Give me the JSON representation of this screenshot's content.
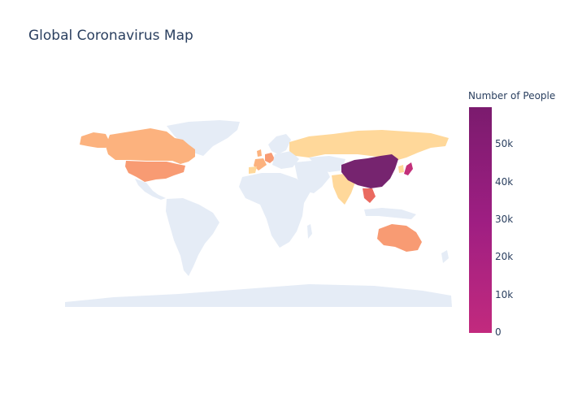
{
  "title": "Global Coronavirus Map",
  "colorbar": {
    "title": "Number of People",
    "ticks": [
      {
        "label": "0",
        "value": 0
      },
      {
        "label": "10k",
        "value": 10000
      },
      {
        "label": "20k",
        "value": 20000
      },
      {
        "label": "30k",
        "value": 30000
      },
      {
        "label": "40k",
        "value": 40000
      },
      {
        "label": "50k",
        "value": 50000
      }
    ],
    "min": 0,
    "max": 60000,
    "colors": [
      "#c22a7e",
      "#9e1e82",
      "#7b1b6e"
    ]
  },
  "colors": {
    "land": "#e5ecf6",
    "low": "#ffd89a",
    "low_mid": "#fcb27e",
    "mid": "#f89b73",
    "high": "#ea6a60",
    "very_high": "#76246f"
  },
  "regions": [
    {
      "name": "China",
      "cases": 59000
    },
    {
      "name": "Japan",
      "cases": 4500
    },
    {
      "name": "Vietnam",
      "cases": 4000
    },
    {
      "name": "Australia",
      "cases": 2000
    },
    {
      "name": "United States",
      "cases": 1800
    },
    {
      "name": "Canada",
      "cases": 900
    },
    {
      "name": "Germany",
      "cases": 1500
    },
    {
      "name": "France",
      "cases": 1200
    },
    {
      "name": "Russia",
      "cases": 300
    },
    {
      "name": "India",
      "cases": 300
    }
  ]
}
